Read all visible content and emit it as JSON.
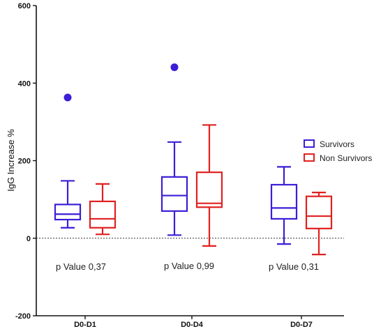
{
  "chart_data": {
    "type": "box",
    "ylabel": "IgG Increase %",
    "ylim": [
      -200,
      600
    ],
    "yticks": [
      "-200",
      "0",
      "200",
      "400",
      "600"
    ],
    "categories": [
      "D0-D1",
      "D0-D4",
      "D0-D7"
    ],
    "reference_line": 0,
    "legend_position": "right",
    "series": [
      {
        "name": "Survivors",
        "color": "#3a1fd6",
        "boxes": [
          {
            "min": 27,
            "q1": 48,
            "median": 62,
            "q3": 87,
            "max": 148,
            "outliers": [
              363
            ]
          },
          {
            "min": 8,
            "q1": 70,
            "median": 110,
            "q3": 158,
            "max": 248,
            "outliers": [
              441
            ]
          },
          {
            "min": -15,
            "q1": 50,
            "median": 78,
            "q3": 138,
            "max": 184,
            "outliers": []
          }
        ]
      },
      {
        "name": "Non Survivors",
        "color": "#e02020",
        "boxes": [
          {
            "min": 10,
            "q1": 27,
            "median": 50,
            "q3": 95,
            "max": 140,
            "outliers": []
          },
          {
            "min": -20,
            "q1": 80,
            "median": 90,
            "q3": 170,
            "max": 292,
            "outliers": []
          },
          {
            "min": -42,
            "q1": 25,
            "median": 57,
            "q3": 108,
            "max": 118,
            "outliers": []
          }
        ]
      }
    ],
    "annotations": [
      "p Value 0,37",
      "p Value 0,99",
      "p Value 0,31"
    ]
  }
}
